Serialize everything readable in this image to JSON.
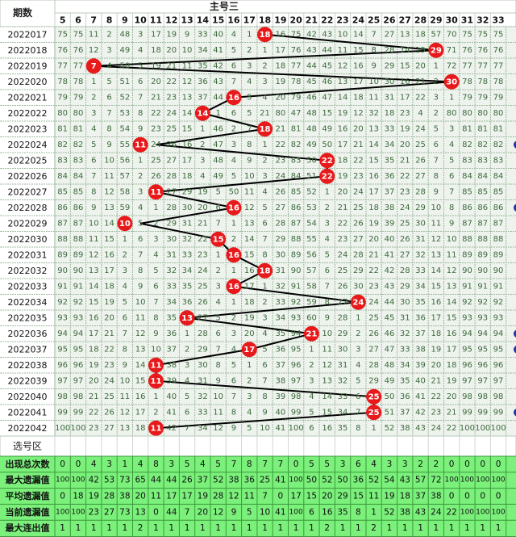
{
  "header": {
    "period_label": "期数",
    "group_title": "主号三",
    "select_label": "选号区"
  },
  "columns": [
    "5",
    "6",
    "7",
    "8",
    "9",
    "10",
    "11",
    "12",
    "13",
    "14",
    "15",
    "16",
    "17",
    "18",
    "19",
    "20",
    "21",
    "22",
    "23",
    "24",
    "25",
    "26",
    "27",
    "28",
    "29",
    "30",
    "31",
    "32",
    "33"
  ],
  "chart_data": {
    "type": "table",
    "periods": [
      "2022017",
      "2022018",
      "2022019",
      "2022020",
      "2022021",
      "2022022",
      "2022023",
      "2022024",
      "2022025",
      "2022026",
      "2022027",
      "2022028",
      "2022029",
      "2022030",
      "2022031",
      "2022032",
      "2022033",
      "2022034",
      "2022035",
      "2022036",
      "2022037",
      "2022038",
      "2022039",
      "2022040",
      "2022041",
      "2022042"
    ],
    "hits": [
      18,
      29,
      7,
      30,
      16,
      14,
      18,
      11,
      22,
      22,
      11,
      16,
      10,
      15,
      16,
      18,
      16,
      24,
      13,
      21,
      17,
      11,
      11,
      25,
      25,
      11
    ],
    "rows": [
      [
        75,
        75,
        11,
        2,
        48,
        3,
        17,
        19,
        9,
        33,
        40,
        4,
        1,
        "18",
        16,
        75,
        42,
        43,
        10,
        14,
        7,
        27,
        13,
        18,
        57,
        70,
        75,
        75,
        75
      ],
      [
        76,
        76,
        12,
        3,
        49,
        4,
        18,
        20,
        10,
        34,
        41,
        5,
        2,
        1,
        17,
        76,
        43,
        44,
        11,
        15,
        8,
        28,
        14,
        19,
        "29",
        71,
        76,
        76,
        76
      ],
      [
        77,
        77,
        "7",
        4,
        50,
        5,
        19,
        21,
        11,
        35,
        42,
        6,
        3,
        2,
        18,
        77,
        44,
        45,
        12,
        16,
        9,
        29,
        15,
        20,
        1,
        72,
        77,
        77,
        77
      ],
      [
        78,
        78,
        1,
        5,
        51,
        6,
        20,
        22,
        12,
        36,
        43,
        7,
        4,
        3,
        19,
        78,
        45,
        46,
        13,
        17,
        10,
        30,
        16,
        21,
        2,
        "30",
        78,
        78,
        78
      ],
      [
        79,
        79,
        2,
        6,
        52,
        7,
        21,
        23,
        13,
        37,
        44,
        "16",
        5,
        4,
        20,
        79,
        46,
        47,
        14,
        18,
        11,
        31,
        17,
        22,
        3,
        1,
        79,
        79,
        79
      ],
      [
        80,
        80,
        3,
        7,
        53,
        8,
        22,
        24,
        14,
        "14",
        1,
        6,
        5,
        21,
        80,
        47,
        48,
        15,
        19,
        12,
        32,
        18,
        23,
        4,
        2,
        80,
        80,
        80,
        80
      ],
      [
        81,
        81,
        4,
        8,
        54,
        9,
        23,
        25,
        15,
        1,
        46,
        2,
        7,
        "18",
        21,
        81,
        48,
        49,
        16,
        20,
        13,
        33,
        19,
        24,
        5,
        3,
        81,
        81,
        81
      ],
      [
        82,
        82,
        5,
        9,
        55,
        "11",
        24,
        26,
        16,
        2,
        47,
        3,
        8,
        1,
        22,
        82,
        49,
        50,
        17,
        21,
        14,
        34,
        20,
        25,
        6,
        4,
        82,
        82,
        82
      ],
      [
        83,
        83,
        6,
        10,
        56,
        1,
        25,
        27,
        17,
        3,
        48,
        4,
        9,
        2,
        23,
        83,
        50,
        "22",
        18,
        22,
        15,
        35,
        21,
        26,
        7,
        5,
        83,
        83,
        83
      ],
      [
        84,
        84,
        7,
        11,
        57,
        2,
        26,
        28,
        18,
        4,
        49,
        5,
        10,
        3,
        24,
        84,
        51,
        "22",
        19,
        23,
        16,
        36,
        22,
        27,
        8,
        6,
        84,
        84,
        84
      ],
      [
        85,
        85,
        8,
        12,
        58,
        3,
        "11",
        27,
        29,
        19,
        5,
        50,
        11,
        4,
        26,
        85,
        52,
        1,
        20,
        24,
        17,
        37,
        23,
        28,
        9,
        7,
        85,
        85,
        85
      ],
      [
        86,
        86,
        9,
        13,
        59,
        4,
        1,
        28,
        30,
        20,
        6,
        "16",
        12,
        5,
        27,
        86,
        53,
        2,
        21,
        25,
        18,
        38,
        24,
        29,
        10,
        8,
        86,
        86,
        86
      ],
      [
        87,
        87,
        10,
        14,
        "10",
        5,
        2,
        29,
        31,
        21,
        7,
        1,
        13,
        6,
        28,
        87,
        54,
        3,
        22,
        26,
        19,
        39,
        25,
        30,
        11,
        9,
        87,
        87,
        87
      ],
      [
        88,
        88,
        11,
        15,
        1,
        6,
        3,
        30,
        32,
        22,
        "15",
        2,
        14,
        7,
        29,
        88,
        55,
        4,
        23,
        27,
        20,
        40,
        26,
        31,
        12,
        10,
        88,
        88,
        88
      ],
      [
        89,
        89,
        12,
        16,
        2,
        7,
        4,
        31,
        33,
        23,
        1,
        "16",
        15,
        8,
        30,
        89,
        56,
        5,
        24,
        28,
        21,
        41,
        27,
        32,
        13,
        11,
        89,
        89,
        89
      ],
      [
        90,
        90,
        13,
        17,
        3,
        8,
        5,
        32,
        34,
        24,
        2,
        1,
        16,
        "18",
        31,
        90,
        57,
        6,
        25,
        29,
        22,
        42,
        28,
        33,
        14,
        12,
        90,
        90,
        90
      ],
      [
        91,
        91,
        14,
        18,
        4,
        9,
        6,
        33,
        35,
        25,
        3,
        "16",
        17,
        1,
        32,
        91,
        58,
        7,
        26,
        30,
        23,
        43,
        29,
        34,
        15,
        13,
        91,
        91,
        91
      ],
      [
        92,
        92,
        15,
        19,
        5,
        10,
        7,
        34,
        36,
        26,
        4,
        1,
        18,
        2,
        33,
        92,
        59,
        8,
        27,
        "24",
        24,
        44,
        30,
        35,
        16,
        14,
        92,
        92,
        92
      ],
      [
        93,
        93,
        16,
        20,
        6,
        11,
        8,
        35,
        "13",
        27,
        5,
        2,
        19,
        3,
        34,
        93,
        60,
        9,
        28,
        1,
        25,
        45,
        31,
        36,
        17,
        15,
        93,
        93,
        93
      ],
      [
        94,
        94,
        17,
        21,
        7,
        12,
        9,
        36,
        1,
        28,
        6,
        3,
        20,
        4,
        35,
        94,
        "21",
        10,
        29,
        2,
        26,
        46,
        32,
        37,
        18,
        16,
        94,
        94,
        94
      ],
      [
        95,
        95,
        18,
        22,
        8,
        13,
        10,
        37,
        2,
        29,
        7,
        4,
        "17",
        5,
        36,
        95,
        1,
        11,
        30,
        3,
        27,
        47,
        33,
        38,
        19,
        17,
        95,
        95,
        95
      ],
      [
        96,
        96,
        19,
        23,
        9,
        14,
        "11",
        38,
        3,
        30,
        8,
        5,
        1,
        6,
        37,
        96,
        2,
        12,
        31,
        4,
        28,
        48,
        34,
        39,
        20,
        18,
        96,
        96,
        96
      ],
      [
        97,
        97,
        20,
        24,
        10,
        15,
        "11",
        39,
        4,
        31,
        9,
        6,
        2,
        7,
        38,
        97,
        3,
        13,
        32,
        5,
        29,
        49,
        35,
        40,
        21,
        19,
        97,
        97,
        97
      ],
      [
        98,
        98,
        21,
        25,
        11,
        16,
        1,
        40,
        5,
        32,
        10,
        7,
        3,
        8,
        39,
        98,
        4,
        14,
        33,
        6,
        "25",
        50,
        36,
        41,
        22,
        20,
        98,
        98,
        98
      ],
      [
        99,
        99,
        22,
        26,
        12,
        17,
        2,
        41,
        6,
        33,
        11,
        8,
        4,
        9,
        40,
        99,
        5,
        15,
        34,
        7,
        "25",
        51,
        37,
        42,
        23,
        21,
        99,
        99,
        99
      ],
      [
        100,
        100,
        23,
        27,
        13,
        18,
        "11",
        42,
        7,
        34,
        12,
        9,
        5,
        10,
        41,
        100,
        6,
        16,
        35,
        8,
        1,
        52,
        38,
        43,
        24,
        22,
        100,
        100,
        100
      ]
    ],
    "stats": [
      {
        "label": "出现总次数",
        "values": [
          0,
          0,
          4,
          3,
          1,
          4,
          8,
          3,
          5,
          4,
          5,
          7,
          8,
          7,
          7,
          0,
          5,
          5,
          3,
          6,
          4,
          3,
          3,
          2,
          2,
          0,
          0,
          0,
          0
        ]
      },
      {
        "label": "最大遗漏值",
        "values": [
          100,
          100,
          42,
          53,
          73,
          65,
          44,
          44,
          26,
          37,
          52,
          38,
          36,
          25,
          41,
          100,
          50,
          52,
          50,
          36,
          52,
          54,
          43,
          57,
          72,
          100,
          100,
          100,
          100
        ]
      },
      {
        "label": "平均遗漏值",
        "values": [
          0,
          18,
          19,
          28,
          38,
          20,
          11,
          17,
          17,
          19,
          28,
          12,
          11,
          7,
          0,
          17,
          15,
          20,
          29,
          15,
          11,
          19,
          18,
          37,
          38,
          0,
          0,
          0,
          0
        ]
      },
      {
        "label": "当前遗漏值",
        "values": [
          100,
          100,
          23,
          27,
          73,
          13,
          0,
          44,
          7,
          20,
          12,
          9,
          5,
          10,
          41,
          100,
          6,
          16,
          35,
          8,
          1,
          52,
          38,
          43,
          24,
          22,
          100,
          100,
          100
        ]
      },
      {
        "label": "最大连出值",
        "values": [
          1,
          1,
          1,
          1,
          1,
          2,
          1,
          1,
          1,
          1,
          1,
          1,
          1,
          1,
          1,
          1,
          1,
          2,
          1,
          1,
          2,
          1,
          1,
          1,
          1,
          1,
          1,
          1,
          1
        ]
      }
    ]
  }
}
